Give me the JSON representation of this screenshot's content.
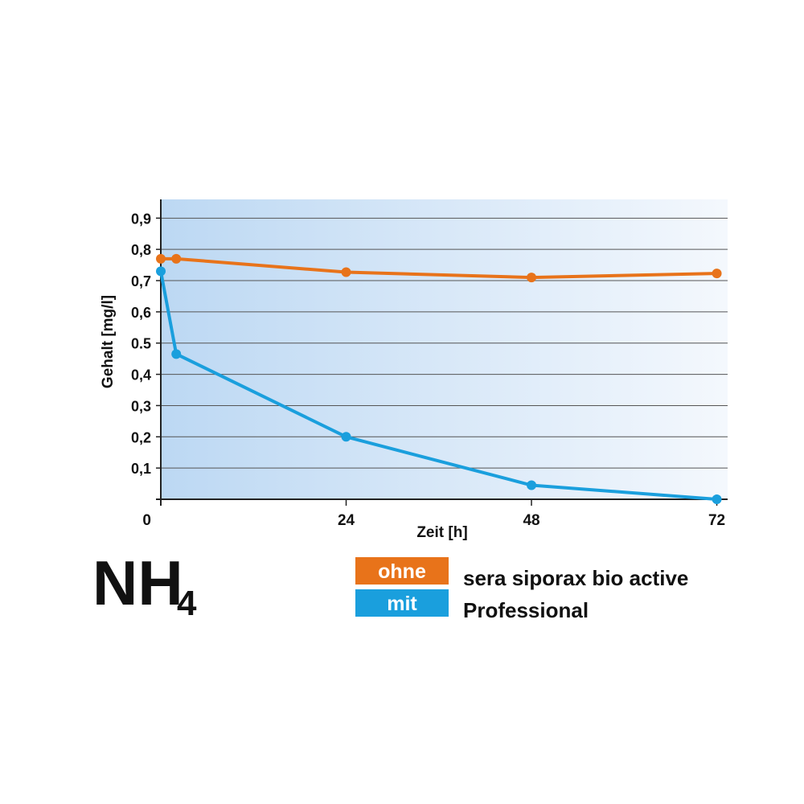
{
  "chart_data": {
    "type": "line",
    "title": {
      "text": "NH",
      "subscript": "4"
    },
    "x_label": "Zeit [h]",
    "y_label": "Gehalt [mg/l]",
    "xlim": [
      0,
      73.4
    ],
    "xticks": [
      0,
      24,
      48,
      72
    ],
    "ylim": [
      0,
      0.96
    ],
    "yticks": [
      {
        "value": 0.1,
        "label": "0,1"
      },
      {
        "value": 0.2,
        "label": "0,2"
      },
      {
        "value": 0.3,
        "label": "0,3"
      },
      {
        "value": 0.4,
        "label": "0,4"
      },
      {
        "value": 0.5,
        "label": "0.5"
      },
      {
        "value": 0.6,
        "label": "0,6"
      },
      {
        "value": 0.7,
        "label": "0,7"
      },
      {
        "value": 0.8,
        "label": "0,8"
      },
      {
        "value": 0.9,
        "label": "0,9"
      }
    ],
    "grid": true,
    "series": [
      {
        "name": "ohne",
        "color": "#e8731a",
        "x": [
          0,
          2,
          24,
          48,
          72
        ],
        "values": [
          0.77,
          0.77,
          0.727,
          0.71,
          0.723
        ]
      },
      {
        "name": "mit",
        "color": "#1a9fdd",
        "x": [
          0,
          2,
          24,
          48,
          72
        ],
        "values": [
          0.73,
          0.465,
          0.2,
          0.045,
          0
        ]
      }
    ],
    "legend_text": [
      "sera siporax bio active",
      "Professional"
    ]
  }
}
